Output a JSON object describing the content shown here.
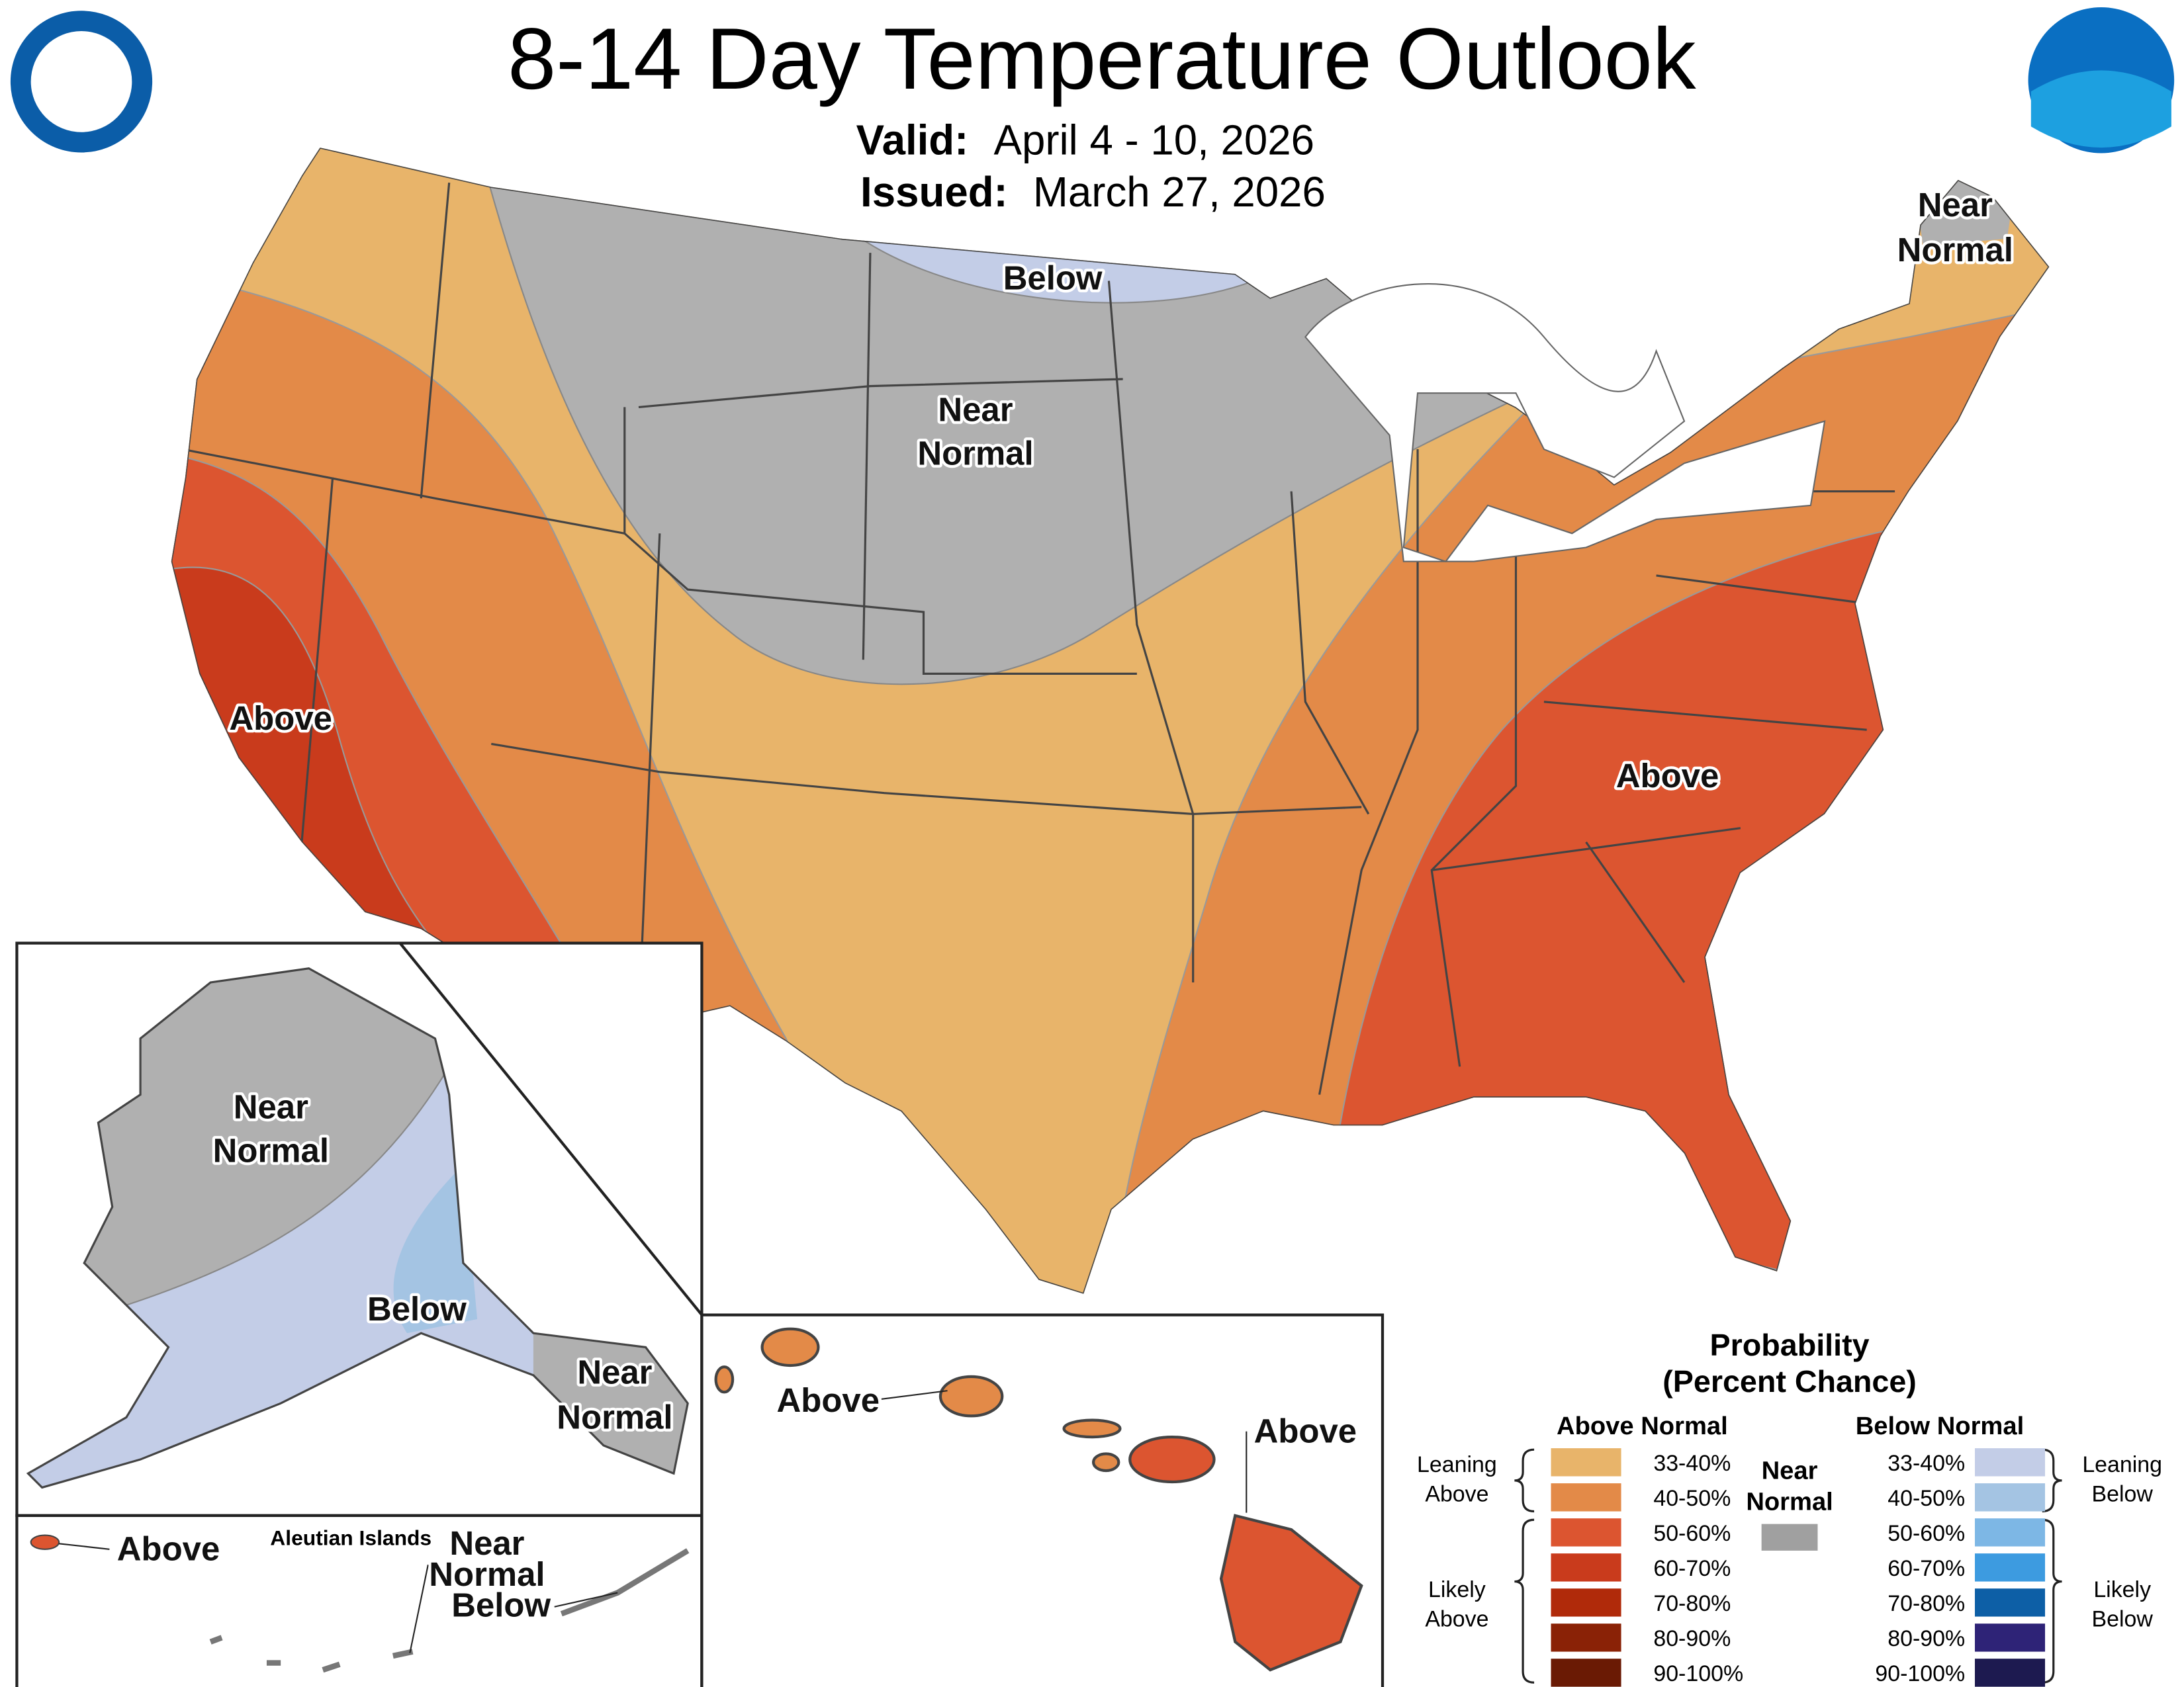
{
  "header": {
    "title": "8-14 Day Temperature Outlook",
    "valid_label": "Valid:",
    "valid_value": "April 4 - 10, 2026",
    "issued_label": "Issued:",
    "issued_value": "March 27, 2026"
  },
  "conus_labels": [
    {
      "lines": [
        "Below"
      ]
    },
    {
      "lines": [
        "Near",
        "Normal"
      ]
    },
    {
      "lines": [
        "Near",
        "Normal"
      ]
    },
    {
      "lines": [
        "Above"
      ]
    },
    {
      "lines": [
        "Above"
      ]
    }
  ],
  "alaska_labels": [
    {
      "lines": [
        "Near",
        "Normal"
      ]
    },
    {
      "lines": [
        "Below"
      ]
    },
    {
      "lines": [
        "Near",
        "Normal"
      ]
    }
  ],
  "aleutian_labels": {
    "title": "Aleutian Islands",
    "above": "Above",
    "other": [
      "Near",
      "Normal",
      "Below"
    ]
  },
  "hawaii_labels": [
    "Above",
    "Above"
  ],
  "legend": {
    "title": "Probability",
    "subtitle": "(Percent Chance)",
    "above_heading": "Above Normal",
    "below_heading": "Below Normal",
    "near_normal": [
      "Near",
      "Normal"
    ],
    "near_color": "#a0a0a0",
    "leaning_above": [
      "Leaning",
      "Above"
    ],
    "likely_above": [
      "Likely",
      "Above"
    ],
    "leaning_below": [
      "Leaning",
      "Below"
    ],
    "likely_below": [
      "Likely",
      "Below"
    ],
    "above_items": [
      {
        "label": "33-40%",
        "color": "#e8b46a"
      },
      {
        "label": "40-50%",
        "color": "#e38a48"
      },
      {
        "label": "50-60%",
        "color": "#dc5530"
      },
      {
        "label": "60-70%",
        "color": "#c93b1c"
      },
      {
        "label": "70-80%",
        "color": "#b02a0a"
      },
      {
        "label": "80-90%",
        "color": "#8a2206"
      },
      {
        "label": "90-100%",
        "color": "#6a1a04"
      }
    ],
    "below_items": [
      {
        "label": "33-40%",
        "color": "#c3cde7"
      },
      {
        "label": "40-50%",
        "color": "#a4c4e3"
      },
      {
        "label": "50-60%",
        "color": "#7db7e5"
      },
      {
        "label": "60-70%",
        "color": "#3d9be0"
      },
      {
        "label": "70-80%",
        "color": "#0d5fa6"
      },
      {
        "label": "80-90%",
        "color": "#2e2377"
      },
      {
        "label": "90-100%",
        "color": "#1d1a50"
      }
    ]
  }
}
